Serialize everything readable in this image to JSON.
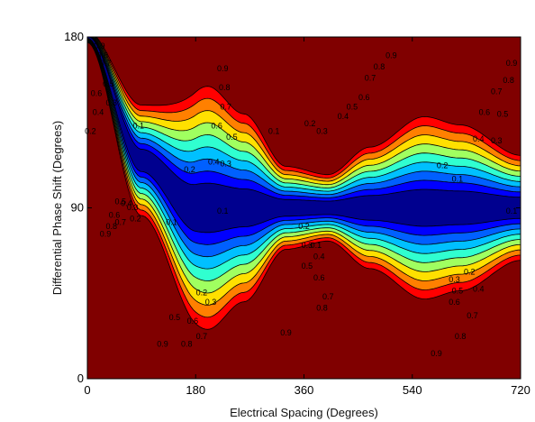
{
  "chart_data": {
    "type": "heatmap",
    "subtype": "filled-contour",
    "title": "",
    "xlabel": "Electrical Spacing (Degrees)",
    "ylabel": "Differential Phase Shift (Degrees)",
    "xlim": [
      0,
      720
    ],
    "ylim": [
      0,
      180
    ],
    "x_ticks": [
      "0",
      "180",
      "360",
      "540",
      "720"
    ],
    "y_ticks": [
      "0",
      "90",
      "180"
    ],
    "grid": false,
    "legend": "none",
    "contour_levels": [
      0.1,
      0.2,
      0.3,
      0.4,
      0.5,
      0.6,
      0.7,
      0.8,
      0.9
    ],
    "band_colors": [
      "#00008f",
      "#0000ff",
      "#0060ff",
      "#00c0ff",
      "#30ffd0",
      "#a0ff60",
      "#ffe000",
      "#ff8000",
      "#ff0000",
      "#800000"
    ],
    "trough_centerline": [
      {
        "x": 0,
        "y": 180
      },
      {
        "x": 90,
        "y": 115
      },
      {
        "x": 180,
        "y": 90
      },
      {
        "x": 250,
        "y": 90
      },
      {
        "x": 300,
        "y": 90
      },
      {
        "x": 360,
        "y": 90
      },
      {
        "x": 450,
        "y": 90
      },
      {
        "x": 540,
        "y": 90
      },
      {
        "x": 630,
        "y": 90
      },
      {
        "x": 720,
        "y": 90
      }
    ],
    "trough_halfwidth_deg": [
      {
        "x": 0,
        "w": 2
      },
      {
        "x": 90,
        "w": 20
      },
      {
        "x": 200,
        "w": 44
      },
      {
        "x": 260,
        "w": 34
      },
      {
        "x": 330,
        "w": 15
      },
      {
        "x": 400,
        "w": 12
      },
      {
        "x": 470,
        "w": 22
      },
      {
        "x": 560,
        "w": 33
      },
      {
        "x": 620,
        "w": 30
      },
      {
        "x": 720,
        "w": 19
      }
    ],
    "contour_labels": [
      {
        "text": "0.9",
        "x": 225,
        "y": 163,
        "c": "#000"
      },
      {
        "text": "0.8",
        "x": 228,
        "y": 153,
        "c": "#000"
      },
      {
        "text": "0.7",
        "x": 230,
        "y": 143,
        "c": "#000"
      },
      {
        "text": "0.6",
        "x": 215,
        "y": 133,
        "c": "#000"
      },
      {
        "text": "0.5",
        "x": 240,
        "y": 127,
        "c": "#000"
      },
      {
        "text": "0.4",
        "x": 210,
        "y": 114,
        "c": "#000"
      },
      {
        "text": "0.3",
        "x": 230,
        "y": 113,
        "c": "#000"
      },
      {
        "text": "0.2",
        "x": 170,
        "y": 110,
        "c": "#000"
      },
      {
        "text": "0.1",
        "x": 225,
        "y": 88,
        "c": "#000"
      },
      {
        "text": "0.9",
        "x": 505,
        "y": 170,
        "c": "#000"
      },
      {
        "text": "0.8",
        "x": 485,
        "y": 164,
        "c": "#000"
      },
      {
        "text": "0.7",
        "x": 470,
        "y": 158,
        "c": "#000"
      },
      {
        "text": "0.6",
        "x": 460,
        "y": 148,
        "c": "#000"
      },
      {
        "text": "0.5",
        "x": 440,
        "y": 143,
        "c": "#000"
      },
      {
        "text": "0.4",
        "x": 425,
        "y": 138,
        "c": "#000"
      },
      {
        "text": "0.3",
        "x": 390,
        "y": 130,
        "c": "#000"
      },
      {
        "text": "0.2",
        "x": 370,
        "y": 134,
        "c": "#000"
      },
      {
        "text": "0.1",
        "x": 310,
        "y": 130,
        "c": "#000"
      },
      {
        "text": "0.9",
        "x": 705,
        "y": 166,
        "c": "#000"
      },
      {
        "text": "0.8",
        "x": 700,
        "y": 157,
        "c": "#000"
      },
      {
        "text": "0.7",
        "x": 680,
        "y": 151,
        "c": "#000"
      },
      {
        "text": "0.6",
        "x": 660,
        "y": 140,
        "c": "#000"
      },
      {
        "text": "0.5",
        "x": 690,
        "y": 139,
        "c": "#000"
      },
      {
        "text": "0.4",
        "x": 650,
        "y": 126,
        "c": "#000"
      },
      {
        "text": "0.3",
        "x": 680,
        "y": 125,
        "c": "#000"
      },
      {
        "text": "0.2",
        "x": 590,
        "y": 112,
        "c": "#000"
      },
      {
        "text": "0.1",
        "x": 615,
        "y": 105,
        "c": "#000"
      },
      {
        "text": "0.1",
        "x": 380,
        "y": 70,
        "c": "#000"
      },
      {
        "text": "0.2",
        "x": 360,
        "y": 80,
        "c": "#000"
      },
      {
        "text": "0.3",
        "x": 365,
        "y": 70,
        "c": "#000"
      },
      {
        "text": "0.4",
        "x": 385,
        "y": 64,
        "c": "#000"
      },
      {
        "text": "0.5",
        "x": 365,
        "y": 59,
        "c": "#000"
      },
      {
        "text": "0.6",
        "x": 385,
        "y": 53,
        "c": "#000"
      },
      {
        "text": "0.7",
        "x": 400,
        "y": 43,
        "c": "#000"
      },
      {
        "text": "0.8",
        "x": 390,
        "y": 37,
        "c": "#000"
      },
      {
        "text": "0.9",
        "x": 330,
        "y": 24,
        "c": "#000"
      },
      {
        "text": "0.2",
        "x": 190,
        "y": 45,
        "c": "#000"
      },
      {
        "text": "0.3",
        "x": 205,
        "y": 40,
        "c": "#000"
      },
      {
        "text": "0.5",
        "x": 145,
        "y": 32,
        "c": "#000"
      },
      {
        "text": "0.6",
        "x": 175,
        "y": 30,
        "c": "#000"
      },
      {
        "text": "0.7",
        "x": 190,
        "y": 22,
        "c": "#000"
      },
      {
        "text": "0.8",
        "x": 165,
        "y": 18,
        "c": "#000"
      },
      {
        "text": "0.9",
        "x": 125,
        "y": 18,
        "c": "#000"
      },
      {
        "text": "0.1",
        "x": 140,
        "y": 82,
        "c": "#000"
      },
      {
        "text": "0.2",
        "x": 80,
        "y": 84,
        "c": "#000"
      },
      {
        "text": "0.3",
        "x": 75,
        "y": 90,
        "c": "#000"
      },
      {
        "text": "0.4",
        "x": 65,
        "y": 92,
        "c": "#000"
      },
      {
        "text": "0.5",
        "x": 55,
        "y": 93,
        "c": "#000"
      },
      {
        "text": "0.6",
        "x": 45,
        "y": 86,
        "c": "#000"
      },
      {
        "text": "0.7",
        "x": 55,
        "y": 82,
        "c": "#000"
      },
      {
        "text": "0.8",
        "x": 40,
        "y": 80,
        "c": "#000"
      },
      {
        "text": "0.9",
        "x": 30,
        "y": 76,
        "c": "#000"
      },
      {
        "text": "0.9",
        "x": 580,
        "y": 13,
        "c": "#000"
      },
      {
        "text": "0.8",
        "x": 620,
        "y": 22,
        "c": "#000"
      },
      {
        "text": "0.7",
        "x": 640,
        "y": 33,
        "c": "#000"
      },
      {
        "text": "0.6",
        "x": 610,
        "y": 40,
        "c": "#000"
      },
      {
        "text": "0.5",
        "x": 615,
        "y": 46,
        "c": "#000"
      },
      {
        "text": "0.4",
        "x": 650,
        "y": 47,
        "c": "#000"
      },
      {
        "text": "0.3",
        "x": 610,
        "y": 52,
        "c": "#000"
      },
      {
        "text": "0.2",
        "x": 635,
        "y": 56,
        "c": "#000"
      },
      {
        "text": "0.1",
        "x": 705,
        "y": 88,
        "c": "#000"
      },
      {
        "text": "0.9",
        "x": 20,
        "y": 175,
        "c": "#000"
      },
      {
        "text": "0.8",
        "x": 25,
        "y": 170,
        "c": "#000"
      },
      {
        "text": "0.7",
        "x": 30,
        "y": 166,
        "c": "#000"
      },
      {
        "text": "0.6",
        "x": 15,
        "y": 150,
        "c": "#000"
      },
      {
        "text": "0.5",
        "x": 35,
        "y": 155,
        "c": "#000"
      },
      {
        "text": "0.4",
        "x": 18,
        "y": 140,
        "c": "#000"
      },
      {
        "text": "0.3",
        "x": 40,
        "y": 145,
        "c": "#000"
      },
      {
        "text": "0.2",
        "x": 5,
        "y": 130,
        "c": "#000"
      },
      {
        "text": "0.1",
        "x": 85,
        "y": 133,
        "c": "#000"
      }
    ]
  }
}
